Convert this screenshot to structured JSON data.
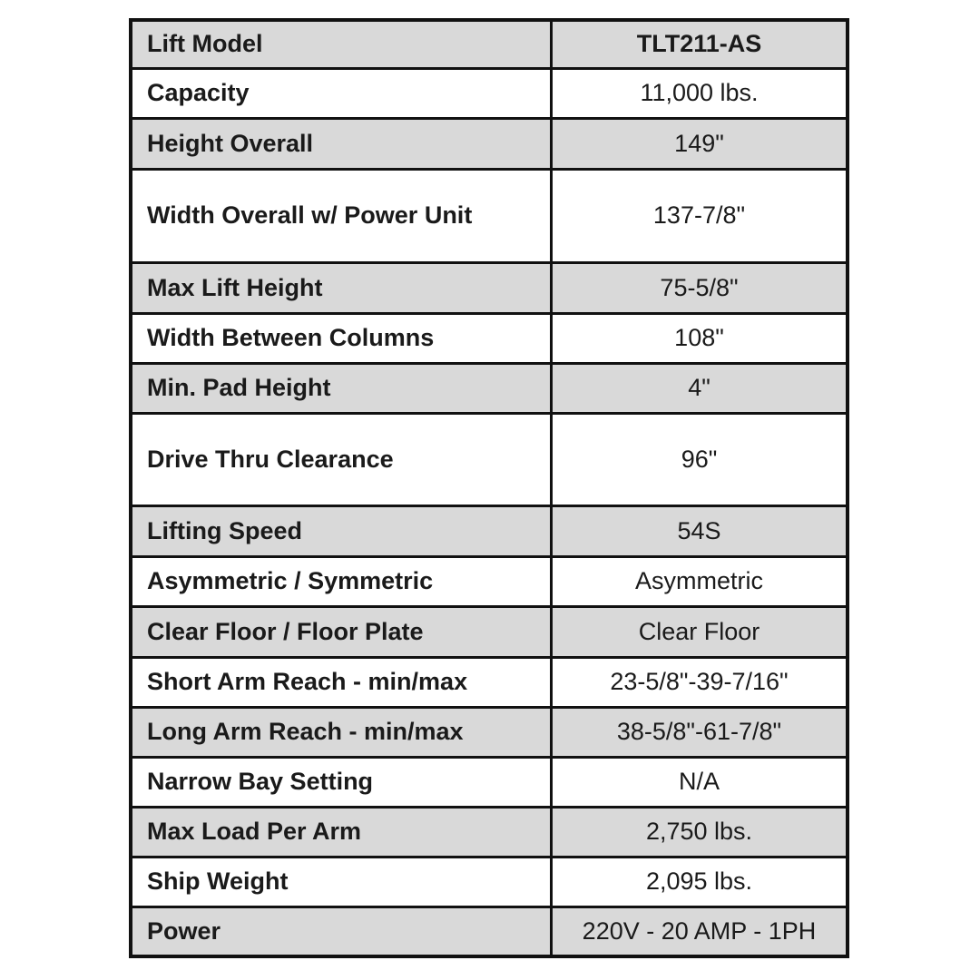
{
  "specs": {
    "rows": [
      {
        "label": "Lift Model",
        "value": "TLT211-AS",
        "shaded": true
      },
      {
        "label": "Capacity",
        "value": "11,000 lbs.",
        "shaded": false
      },
      {
        "label": "Height Overall",
        "value": "149\"",
        "shaded": true
      },
      {
        "label": "Width Overall w/ Power Unit",
        "value": "137-7/8\"",
        "shaded": false
      },
      {
        "label": "Max Lift Height",
        "value": "75-5/8\"",
        "shaded": true
      },
      {
        "label": "Width Between Columns",
        "value": "108\"",
        "shaded": false
      },
      {
        "label": "Min. Pad Height",
        "value": "4\"",
        "shaded": true
      },
      {
        "label": "Drive Thru Clearance",
        "value": "96\"",
        "shaded": false
      },
      {
        "label": "Lifting Speed",
        "value": "54S",
        "shaded": true
      },
      {
        "label": "Asymmetric / Symmetric",
        "value": "Asymmetric",
        "shaded": false
      },
      {
        "label": "Clear Floor / Floor Plate",
        "value": "Clear Floor",
        "shaded": true
      },
      {
        "label": "Short Arm Reach - min/max",
        "value": "23-5/8\"-39-7/16\"",
        "shaded": false
      },
      {
        "label": "Long Arm Reach - min/max",
        "value": "38-5/8\"-61-7/8\"",
        "shaded": true
      },
      {
        "label": "Narrow Bay Setting",
        "value": "N/A",
        "shaded": false
      },
      {
        "label": "Max Load Per Arm",
        "value": "2,750 lbs.",
        "shaded": true
      },
      {
        "label": "Ship Weight",
        "value": "2,095 lbs.",
        "shaded": false
      },
      {
        "label": "Power",
        "value": "220V - 20 AMP - 1PH",
        "shaded": true
      }
    ]
  },
  "colors": {
    "shade": "#d9d9d9",
    "border": "#111111"
  }
}
